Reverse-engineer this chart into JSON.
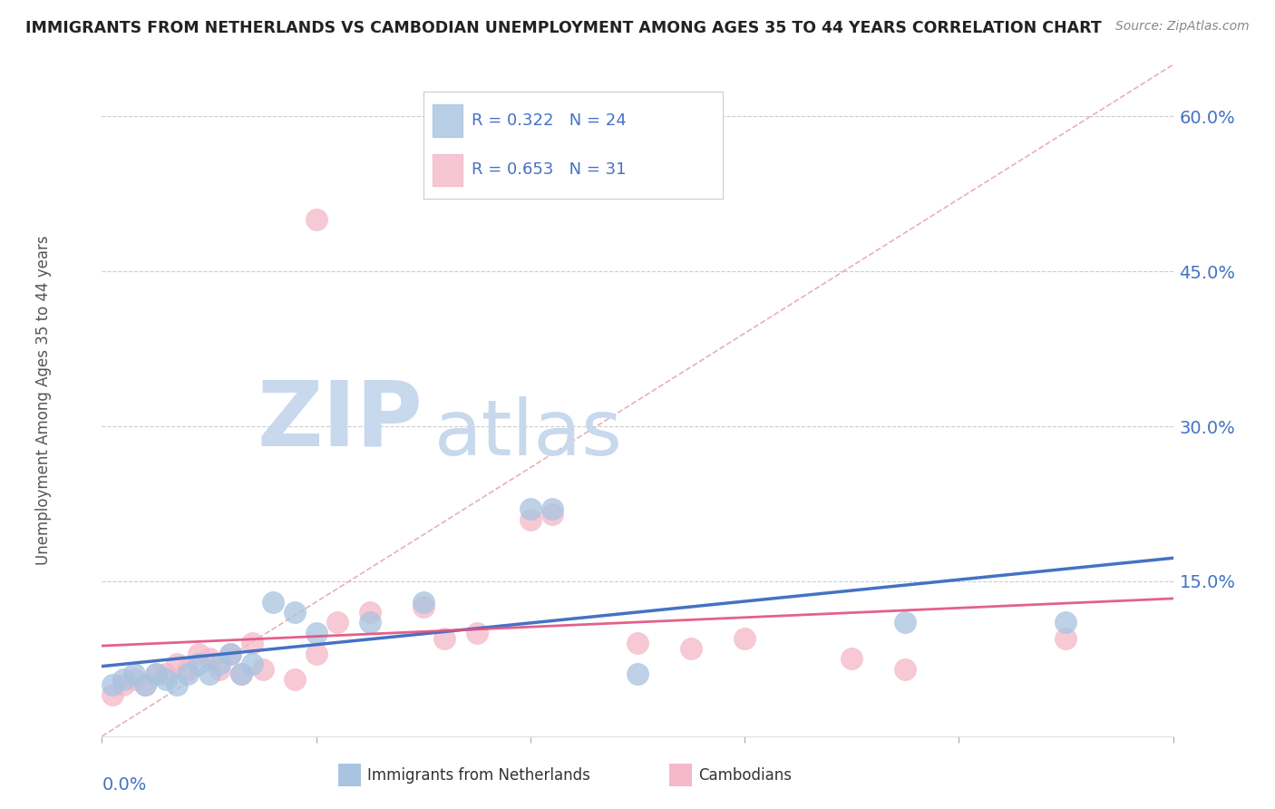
{
  "title": "IMMIGRANTS FROM NETHERLANDS VS CAMBODIAN UNEMPLOYMENT AMONG AGES 35 TO 44 YEARS CORRELATION CHART",
  "source_text": "Source: ZipAtlas.com",
  "ylabel": "Unemployment Among Ages 35 to 44 years",
  "xlim": [
    0.0,
    0.1
  ],
  "ylim": [
    0.0,
    0.65
  ],
  "background_color": "#ffffff",
  "plot_bg_color": "#ffffff",
  "grid_color": "#cccccc",
  "blue_color": "#a8c4e0",
  "pink_color": "#f4b8c8",
  "blue_line_color": "#4472c4",
  "pink_line_color": "#e05080",
  "diag_line_color": "#e8b0b8",
  "title_color": "#222222",
  "source_color": "#888888",
  "ytick_color": "#4472c4",
  "xtick_color": "#4472c4",
  "ylabel_color": "#555555",
  "legend_text_color": "#4472c4",
  "watermark_zip_color": "#c8d8ed",
  "watermark_atlas_color": "#c8d8ed",
  "nl_x": [
    0.001,
    0.002,
    0.003,
    0.004,
    0.005,
    0.006,
    0.007,
    0.008,
    0.009,
    0.01,
    0.011,
    0.012,
    0.013,
    0.014,
    0.016,
    0.018,
    0.02,
    0.025,
    0.03,
    0.04,
    0.042,
    0.05,
    0.075,
    0.09
  ],
  "nl_y": [
    0.05,
    0.055,
    0.06,
    0.05,
    0.06,
    0.055,
    0.05,
    0.06,
    0.07,
    0.06,
    0.07,
    0.08,
    0.06,
    0.07,
    0.13,
    0.12,
    0.1,
    0.11,
    0.13,
    0.22,
    0.22,
    0.06,
    0.11,
    0.11
  ],
  "cam_x": [
    0.001,
    0.002,
    0.003,
    0.004,
    0.005,
    0.006,
    0.007,
    0.008,
    0.009,
    0.01,
    0.011,
    0.012,
    0.013,
    0.014,
    0.015,
    0.018,
    0.02,
    0.022,
    0.025,
    0.03,
    0.032,
    0.035,
    0.04,
    0.042,
    0.05,
    0.055,
    0.06,
    0.07,
    0.075,
    0.02,
    0.09
  ],
  "cam_y": [
    0.04,
    0.05,
    0.055,
    0.05,
    0.06,
    0.06,
    0.07,
    0.065,
    0.08,
    0.075,
    0.065,
    0.08,
    0.06,
    0.09,
    0.065,
    0.055,
    0.08,
    0.11,
    0.12,
    0.125,
    0.095,
    0.1,
    0.21,
    0.215,
    0.09,
    0.085,
    0.095,
    0.075,
    0.065,
    0.5,
    0.095
  ],
  "ytick_vals": [
    0.15,
    0.3,
    0.45,
    0.6
  ],
  "ytick_labels": [
    "15.0%",
    "30.0%",
    "45.0%",
    "60.0%"
  ],
  "r_nl": "0.322",
  "n_nl": "24",
  "r_cam": "0.653",
  "n_cam": "31"
}
